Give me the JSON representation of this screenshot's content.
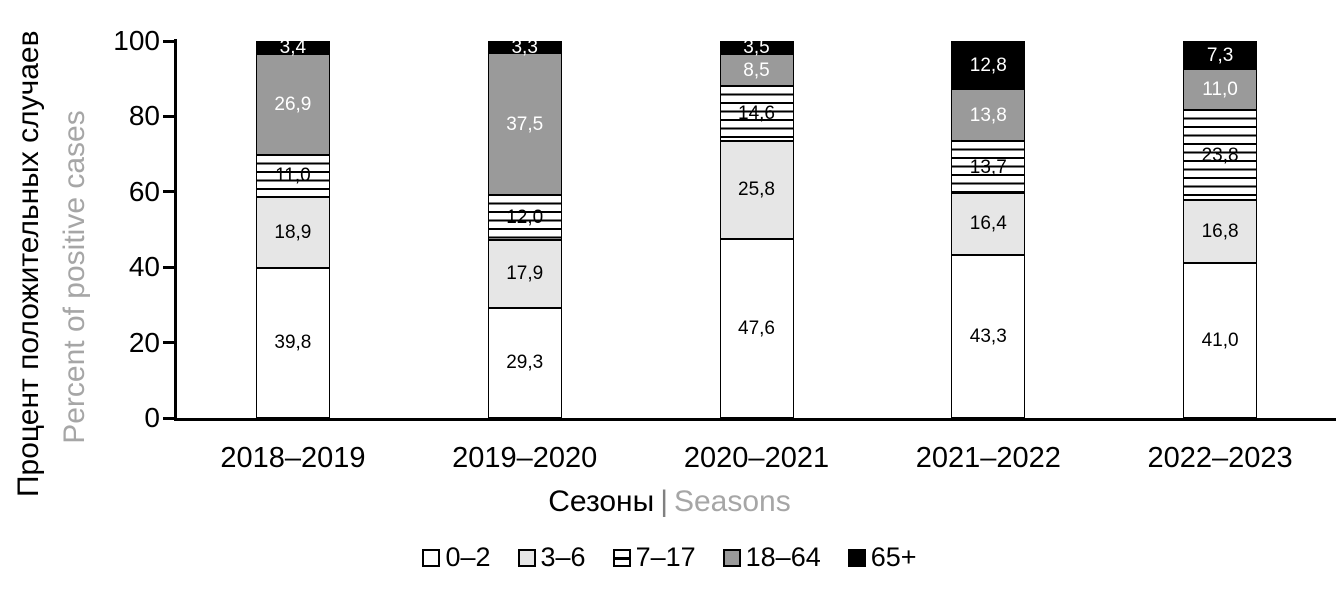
{
  "chart_data": {
    "type": "bar",
    "stacked": true,
    "orientation": "vertical",
    "grid": false,
    "legend_position": "bottom",
    "decimal_separator": ",",
    "categories": [
      "2018–2019",
      "2019–2020",
      "2020–2021",
      "2021–2022",
      "2022–2023"
    ],
    "series": [
      {
        "name": "0–2",
        "fill": "white",
        "label_color": "#000000",
        "values": [
          39.8,
          29.3,
          47.6,
          43.3,
          41.0
        ]
      },
      {
        "name": "3–6",
        "fill": "lightgray",
        "label_color": "#000000",
        "values": [
          18.9,
          17.9,
          25.8,
          16.4,
          16.8
        ]
      },
      {
        "name": "7–17",
        "fill": "stripes",
        "label_color": "#000000",
        "values": [
          11.0,
          12.0,
          14.6,
          13.7,
          23.8
        ]
      },
      {
        "name": "18–64",
        "fill": "gray",
        "label_color": "#ffffff",
        "values": [
          26.9,
          37.5,
          8.5,
          13.8,
          11.0
        ]
      },
      {
        "name": "65+",
        "fill": "black",
        "label_color": "#ffffff",
        "values": [
          3.4,
          3.3,
          3.5,
          12.8,
          7.3
        ]
      }
    ],
    "ylim": [
      0,
      100
    ],
    "yticks": [
      0,
      20,
      40,
      60,
      80,
      100
    ],
    "ylabel_ru": "Процент положительных случаев",
    "ylabel_en": "Percent of positive cases",
    "xlabel_ru": "Сезоны",
    "xlabel_separator": "|",
    "xlabel_en": "Seasons"
  },
  "colors": {
    "white_fill": "#ffffff",
    "light_gray_fill": "#e6e6e6",
    "gray_fill": "#9a9a9a",
    "black_fill": "#000000",
    "axis": "#000000",
    "muted_text": "#a6a6a6"
  }
}
